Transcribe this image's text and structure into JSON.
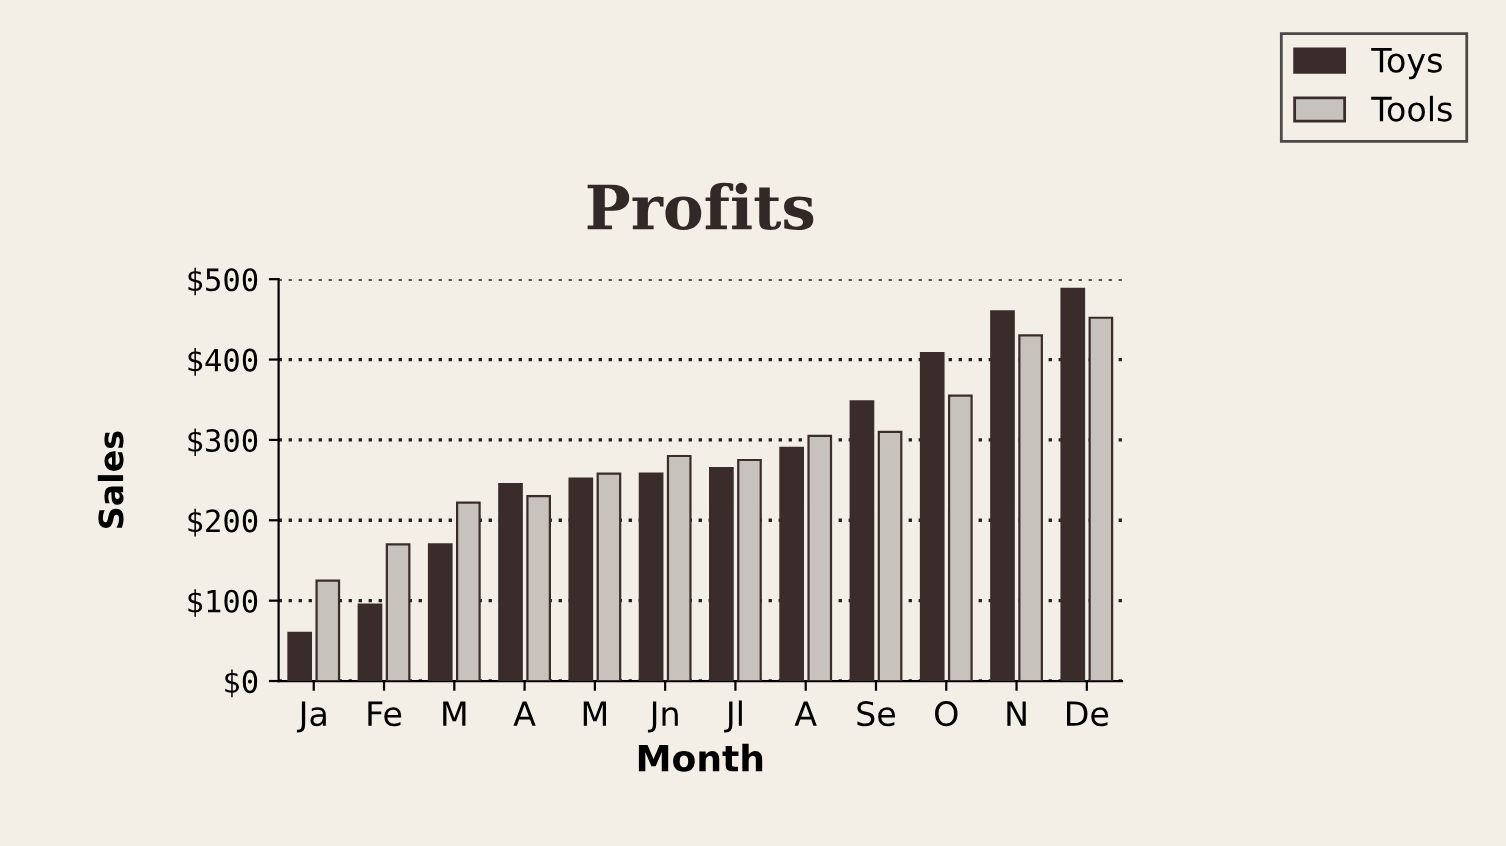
{
  "chart_data": {
    "type": "bar",
    "title": "Profits",
    "xlabel": "Month",
    "ylabel": "Sales",
    "categories": [
      "Ja",
      "Fe",
      "M",
      "A",
      "M",
      "Jn",
      "Jl",
      "A",
      "Se",
      "O",
      "N",
      "De"
    ],
    "series": [
      {
        "name": "Toys",
        "color": "#3b2c2c",
        "values": [
          60,
          95,
          170,
          245,
          252,
          258,
          265,
          290,
          348,
          408,
          460,
          488
        ]
      },
      {
        "name": "Tools",
        "color": "#c8c2bc",
        "values": [
          125,
          170,
          222,
          230,
          258,
          280,
          275,
          305,
          310,
          355,
          430,
          452
        ]
      }
    ],
    "ylim": [
      0,
      500
    ],
    "yticks": [
      {
        "value": 0,
        "label": "$0"
      },
      {
        "value": 100,
        "label": "$100"
      },
      {
        "value": 200,
        "label": "$200"
      },
      {
        "value": 300,
        "label": "$300"
      },
      {
        "value": 400,
        "label": "$400"
      },
      {
        "value": 500,
        "label": "$500"
      }
    ],
    "grid": "y",
    "legend": "top right"
  }
}
